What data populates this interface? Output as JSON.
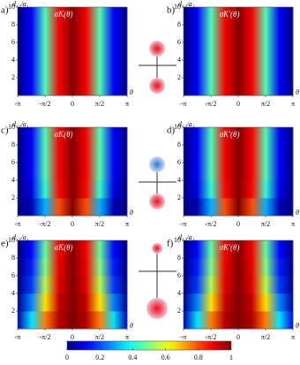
{
  "chart_data": [
    {
      "type": "heatmap",
      "panel_label": "a)",
      "title": "σ̃K(θ)",
      "y_label": "d₁₂/a₁",
      "x_label": "θ",
      "xlim": [
        -3.14159,
        3.14159
      ],
      "xticks": [
        {
          "value": -3.14159,
          "label": "-π"
        },
        {
          "value": -1.5708,
          "label": "-π/2"
        },
        0,
        {
          "value": 1.5708,
          "label": "π/2"
        },
        {
          "value": 3.14159,
          "label": "π"
        }
      ],
      "ylim": [
        0,
        10
      ],
      "yticks": [
        2,
        4,
        6,
        8,
        10
      ],
      "x": [
        -3.14159,
        -2.35619,
        -1.5708,
        -0.7854,
        0,
        0.7854,
        1.5708,
        2.35619,
        3.14159
      ],
      "y": [
        1,
        3,
        5,
        7,
        9
      ],
      "values": [
        [
          0,
          0.12,
          0.45,
          0.88,
          1,
          0.88,
          0.45,
          0.12,
          0
        ],
        [
          0,
          0.12,
          0.45,
          0.88,
          1,
          0.88,
          0.45,
          0.12,
          0
        ],
        [
          0,
          0.12,
          0.45,
          0.88,
          1,
          0.88,
          0.45,
          0.12,
          0
        ],
        [
          0,
          0.12,
          0.45,
          0.88,
          1,
          0.88,
          0.45,
          0.12,
          0
        ],
        [
          0,
          0.12,
          0.45,
          0.88,
          1,
          0.88,
          0.45,
          0.12,
          0
        ]
      ]
    },
    {
      "type": "heatmap",
      "panel_label": "b)",
      "title": "σ̃K'(θ)",
      "y_label": "d₁₂/a₁",
      "x_label": "θ",
      "xlim": [
        -3.14159,
        3.14159
      ],
      "xticks": [
        {
          "value": -3.14159,
          "label": "-π"
        },
        {
          "value": -1.5708,
          "label": "-π/2"
        },
        0,
        {
          "value": 1.5708,
          "label": "π/2"
        },
        {
          "value": 3.14159,
          "label": "π"
        }
      ],
      "ylim": [
        0,
        10
      ],
      "yticks": [
        2,
        4,
        6,
        8,
        10
      ],
      "x": [
        -3.14159,
        -2.35619,
        -1.5708,
        -0.7854,
        0,
        0.7854,
        1.5708,
        2.35619,
        3.14159
      ],
      "y": [
        1,
        3,
        5,
        7,
        9
      ],
      "values": [
        [
          0,
          0.12,
          0.45,
          0.88,
          1,
          0.88,
          0.45,
          0.12,
          0
        ],
        [
          0,
          0.12,
          0.45,
          0.88,
          1,
          0.88,
          0.45,
          0.12,
          0
        ],
        [
          0,
          0.12,
          0.45,
          0.88,
          1,
          0.88,
          0.45,
          0.12,
          0
        ],
        [
          0,
          0.12,
          0.45,
          0.88,
          1,
          0.88,
          0.45,
          0.12,
          0
        ],
        [
          0,
          0.12,
          0.45,
          0.88,
          1,
          0.88,
          0.45,
          0.12,
          0
        ]
      ]
    },
    {
      "type": "heatmap",
      "panel_label": "c)",
      "title": "σ̃K(θ)",
      "y_label": "d₁₂/a₁",
      "x_label": "θ",
      "xlim": [
        -3.14159,
        3.14159
      ],
      "xticks": [
        {
          "value": -3.14159,
          "label": "-π"
        },
        {
          "value": -1.5708,
          "label": "-π/2"
        },
        0,
        {
          "value": 1.5708,
          "label": "π/2"
        },
        {
          "value": 3.14159,
          "label": "π"
        }
      ],
      "ylim": [
        0,
        10
      ],
      "yticks": [
        2,
        4,
        6,
        8,
        10
      ],
      "x": [
        -3.14159,
        -2.35619,
        -1.5708,
        -0.7854,
        0,
        0.7854,
        1.5708,
        2.35619,
        3.14159
      ],
      "y": [
        1,
        3,
        5,
        7,
        9
      ],
      "values": [
        [
          0,
          0.05,
          0.3,
          0.8,
          1,
          0.8,
          0.3,
          0.05,
          0
        ],
        [
          0,
          0.1,
          0.42,
          0.87,
          1,
          0.87,
          0.42,
          0.1,
          0
        ],
        [
          0,
          0.12,
          0.45,
          0.88,
          1,
          0.88,
          0.45,
          0.12,
          0
        ],
        [
          0,
          0.12,
          0.45,
          0.88,
          1,
          0.88,
          0.45,
          0.12,
          0
        ],
        [
          0,
          0.12,
          0.45,
          0.88,
          1,
          0.88,
          0.45,
          0.12,
          0
        ]
      ]
    },
    {
      "type": "heatmap",
      "panel_label": "d)",
      "title": "σ̃K'(θ)",
      "y_label": "d₁₂/a₁",
      "x_label": "θ",
      "xlim": [
        -3.14159,
        3.14159
      ],
      "xticks": [
        {
          "value": -3.14159,
          "label": "-π"
        },
        {
          "value": -1.5708,
          "label": "-π/2"
        },
        0,
        {
          "value": 1.5708,
          "label": "π/2"
        },
        {
          "value": 3.14159,
          "label": "π"
        }
      ],
      "ylim": [
        0,
        10
      ],
      "yticks": [
        2,
        4,
        6,
        8,
        10
      ],
      "x": [
        -3.14159,
        -2.35619,
        -1.5708,
        -0.7854,
        0,
        0.7854,
        1.5708,
        2.35619,
        3.14159
      ],
      "y": [
        1,
        3,
        5,
        7,
        9
      ],
      "values": [
        [
          0,
          0.05,
          0.3,
          0.8,
          1,
          0.8,
          0.3,
          0.05,
          0
        ],
        [
          0,
          0.1,
          0.42,
          0.87,
          1,
          0.87,
          0.42,
          0.1,
          0
        ],
        [
          0,
          0.12,
          0.45,
          0.88,
          1,
          0.88,
          0.45,
          0.12,
          0
        ],
        [
          0,
          0.12,
          0.45,
          0.88,
          1,
          0.88,
          0.45,
          0.12,
          0
        ],
        [
          0,
          0.12,
          0.45,
          0.88,
          1,
          0.88,
          0.45,
          0.12,
          0
        ]
      ]
    },
    {
      "type": "heatmap",
      "panel_label": "e)",
      "title": "σ̃K(θ)",
      "y_label": "d₁₂/a₁",
      "x_label": "θ",
      "xlim": [
        -3.14159,
        3.14159
      ],
      "xticks": [
        {
          "value": -3.14159,
          "label": "-π"
        },
        {
          "value": -1.5708,
          "label": "-π/2"
        },
        0,
        {
          "value": 1.5708,
          "label": "π/2"
        },
        {
          "value": 3.14159,
          "label": "π"
        }
      ],
      "ylim": [
        0,
        10
      ],
      "yticks": [
        2,
        4,
        6,
        8,
        10
      ],
      "x": [
        -3.14159,
        -2.35619,
        -1.5708,
        -0.7854,
        0,
        0.7854,
        1.5708,
        2.35619,
        3.14159
      ],
      "y": [
        1,
        3,
        5,
        7,
        9
      ],
      "values": [
        [
          0.05,
          0.35,
          0.75,
          0.95,
          1,
          0.95,
          0.75,
          0.35,
          0.05
        ],
        [
          0.02,
          0.25,
          0.65,
          0.93,
          1,
          0.93,
          0.65,
          0.25,
          0.02
        ],
        [
          0,
          0.18,
          0.55,
          0.9,
          1,
          0.9,
          0.55,
          0.18,
          0
        ],
        [
          0,
          0.15,
          0.5,
          0.89,
          1,
          0.89,
          0.5,
          0.15,
          0
        ],
        [
          0,
          0.13,
          0.47,
          0.88,
          1,
          0.88,
          0.47,
          0.13,
          0
        ]
      ]
    },
    {
      "type": "heatmap",
      "panel_label": "f)",
      "title": "σ̃K'(θ)",
      "y_label": "d₁₂/a₁",
      "x_label": "θ",
      "xlim": [
        -3.14159,
        3.14159
      ],
      "xticks": [
        {
          "value": -3.14159,
          "label": "-π"
        },
        {
          "value": -1.5708,
          "label": "-π/2"
        },
        0,
        {
          "value": 1.5708,
          "label": "π/2"
        },
        {
          "value": 3.14159,
          "label": "π"
        }
      ],
      "ylim": [
        0,
        10
      ],
      "yticks": [
        2,
        4,
        6,
        8,
        10
      ],
      "x": [
        -3.14159,
        -2.35619,
        -1.5708,
        -0.7854,
        0,
        0.7854,
        1.5708,
        2.35619,
        3.14159
      ],
      "y": [
        1,
        3,
        5,
        7,
        9
      ],
      "values": [
        [
          0.05,
          0.35,
          0.75,
          0.95,
          1,
          0.95,
          0.75,
          0.35,
          0.1
        ],
        [
          0.02,
          0.25,
          0.65,
          0.93,
          1,
          0.93,
          0.65,
          0.25,
          0.02
        ],
        [
          0,
          0.18,
          0.55,
          0.9,
          1,
          0.9,
          0.55,
          0.18,
          0
        ],
        [
          0,
          0.15,
          0.5,
          0.89,
          1,
          0.89,
          0.5,
          0.15,
          0
        ],
        [
          0,
          0.13,
          0.47,
          0.88,
          1,
          0.88,
          0.47,
          0.13,
          0
        ]
      ]
    }
  ],
  "colorbar": {
    "lim": [
      0,
      1
    ],
    "ticks": [
      0,
      0.2,
      0.4,
      0.6,
      0.8,
      1
    ]
  }
}
